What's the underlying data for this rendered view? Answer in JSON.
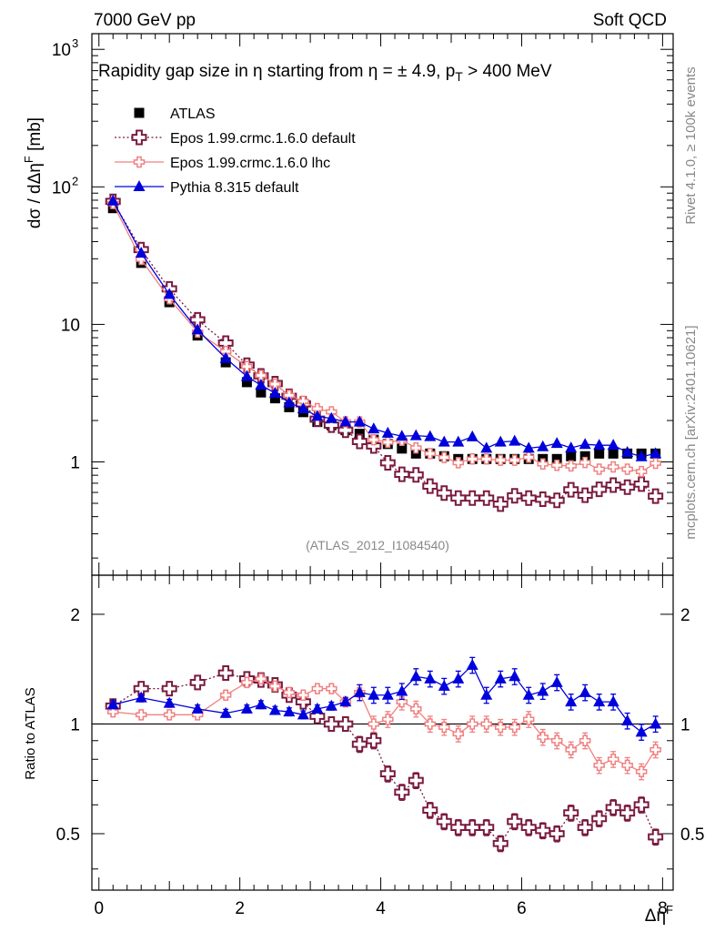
{
  "chart_data": {
    "type": "scatter",
    "header_left": "7000 GeV pp",
    "header_right": "Soft QCD",
    "title_parts": {
      "pre": "Rapidity gap size in ",
      "eta1": "η",
      "mid": " starting from ",
      "eta2": "η",
      "post": " = ± 4.9, p",
      "sub": "T",
      "tail": " > 400 MeV"
    },
    "ylabel": "dσ / dΔη",
    "ylabel_sup": "F",
    "ylabel_unit": " [mb]",
    "ratio_ylabel": "Ratio to ATLAS",
    "xlabel": "Δη",
    "xlabel_sup": "F",
    "analysis_id": "(ATLAS_2012_I1084540)",
    "side_label_1": "Rivet 4.1.0, ≥ 100k events",
    "side_label_2": "mcplots.cern.ch [arXiv:2401.10621]",
    "xlim": [
      -0.1,
      8.15
    ],
    "ylim": [
      0.15,
      1300
    ],
    "yscale": "log",
    "ratio_ylim": [
      0.35,
      2.56
    ],
    "ratio_yscale": "log",
    "x_ticks": [
      0,
      2,
      4,
      6,
      8
    ],
    "y_tick_labels": [
      {
        "v": 1000,
        "label": "10",
        "sup": "3"
      },
      {
        "v": 100,
        "label": "10",
        "sup": "2"
      },
      {
        "v": 10,
        "label": "10",
        "sup": ""
      },
      {
        "v": 1,
        "label": "1",
        "sup": ""
      }
    ],
    "ratio_ticks": [
      {
        "v": 0.5,
        "label": "0.5"
      },
      {
        "v": 1,
        "label": "1"
      },
      {
        "v": 2,
        "label": "2"
      }
    ],
    "x": [
      0.2,
      0.6,
      1.0,
      1.4,
      1.8,
      2.1,
      2.3,
      2.5,
      2.7,
      2.9,
      3.1,
      3.3,
      3.5,
      3.7,
      3.9,
      4.1,
      4.3,
      4.5,
      4.7,
      4.9,
      5.1,
      5.3,
      5.5,
      5.7,
      5.9,
      6.1,
      6.3,
      6.5,
      6.7,
      6.9,
      7.1,
      7.3,
      7.5,
      7.7,
      7.9
    ],
    "series": [
      {
        "name": "ATLAS",
        "color": "#000000",
        "marker": "square",
        "line": "none",
        "values": [
          70,
          28,
          14.5,
          8.3,
          5.3,
          3.8,
          3.2,
          2.9,
          2.5,
          2.3,
          1.95,
          1.85,
          1.7,
          1.6,
          1.45,
          1.35,
          1.25,
          1.15,
          1.15,
          1.1,
          1.05,
          1.05,
          1.05,
          1.05,
          1.05,
          1.05,
          1.05,
          1.05,
          1.1,
          1.1,
          1.15,
          1.15,
          1.15,
          1.15,
          1.15
        ]
      },
      {
        "name": "Epos 1.99.crmc.1.6.0 default",
        "color": "#7a1a3f",
        "marker": "open-cross",
        "line": "dotted",
        "ratio": [
          1.12,
          1.25,
          1.25,
          1.3,
          1.38,
          1.33,
          1.32,
          1.28,
          1.2,
          1.15,
          1.05,
          1.0,
          1.0,
          0.88,
          0.9,
          0.73,
          0.65,
          0.7,
          0.58,
          0.54,
          0.52,
          0.52,
          0.52,
          0.47,
          0.54,
          0.52,
          0.51,
          0.5,
          0.57,
          0.52,
          0.55,
          0.59,
          0.57,
          0.6,
          0.49
        ]
      },
      {
        "name": "Epos 1.99.crmc.1.6.0 lhc",
        "color": "#f08080",
        "marker": "open-cross-small",
        "line": "solid",
        "ratio": [
          1.08,
          1.06,
          1.06,
          1.06,
          1.2,
          1.3,
          1.33,
          1.27,
          1.22,
          1.2,
          1.25,
          1.25,
          1.15,
          1.22,
          1.0,
          1.03,
          1.15,
          1.1,
          1.0,
          0.98,
          0.94,
          1.0,
          1.0,
          0.98,
          0.98,
          1.03,
          0.92,
          0.9,
          0.85,
          0.9,
          0.77,
          0.8,
          0.77,
          0.74,
          0.85
        ]
      },
      {
        "name": "Pythia 8.315 default",
        "color": "#0000dd",
        "marker": "triangle",
        "line": "solid",
        "ratio": [
          1.13,
          1.18,
          1.14,
          1.1,
          1.07,
          1.1,
          1.13,
          1.09,
          1.08,
          1.06,
          1.1,
          1.12,
          1.15,
          1.22,
          1.2,
          1.2,
          1.23,
          1.35,
          1.33,
          1.27,
          1.33,
          1.45,
          1.2,
          1.33,
          1.35,
          1.2,
          1.23,
          1.3,
          1.15,
          1.22,
          1.15,
          1.15,
          1.02,
          0.95,
          1.0
        ]
      }
    ],
    "legend_position": "top-left"
  }
}
